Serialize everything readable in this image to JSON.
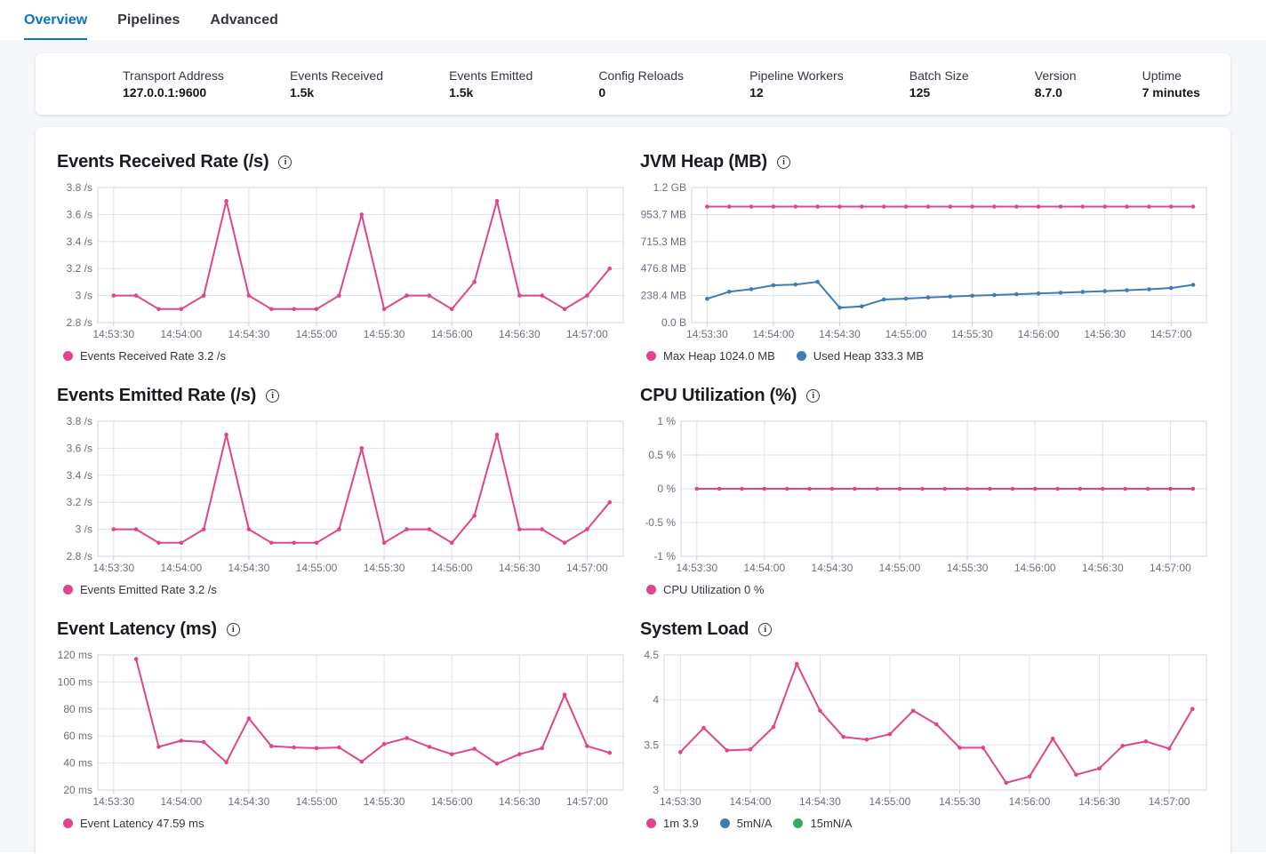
{
  "tabs": [
    {
      "label": "Overview",
      "active": true
    },
    {
      "label": "Pipelines",
      "active": false
    },
    {
      "label": "Advanced",
      "active": false
    }
  ],
  "stats": [
    {
      "label": "Transport Address",
      "value": "127.0.0.1:9600"
    },
    {
      "label": "Events Received",
      "value": "1.5k"
    },
    {
      "label": "Events Emitted",
      "value": "1.5k"
    },
    {
      "label": "Config Reloads",
      "value": "0"
    },
    {
      "label": "Pipeline Workers",
      "value": "12"
    },
    {
      "label": "Batch Size",
      "value": "125"
    },
    {
      "label": "Version",
      "value": "8.7.0"
    },
    {
      "label": "Uptime",
      "value": "7 minutes"
    }
  ],
  "icons": {
    "info": "i"
  },
  "colors": {
    "pink": "#e0458c",
    "blue": "#3f7cb6",
    "green": "#35ab62",
    "accent_blue": "#0b72c4"
  },
  "chart_data": [
    {
      "id": "events-received-rate",
      "type": "line",
      "title": "Events Received Rate (/s)",
      "xlabel": "",
      "ylabel": "",
      "x_tick_labels": [
        "14:53:30",
        "14:54:00",
        "14:54:30",
        "14:55:00",
        "14:55:30",
        "14:56:00",
        "14:56:30",
        "14:57:00"
      ],
      "x_tick_interval_sec": 30,
      "x_domain_sec": [
        -7,
        226
      ],
      "ylim": [
        2.8,
        3.8
      ],
      "y_ticks": [
        {
          "v": 2.8,
          "label": "2.8 /s"
        },
        {
          "v": 3.0,
          "label": "3 /s"
        },
        {
          "v": 3.2,
          "label": "3.2 /s"
        },
        {
          "v": 3.4,
          "label": "3.4 /s"
        },
        {
          "v": 3.6,
          "label": "3.6 /s"
        },
        {
          "v": 3.8,
          "label": "3.8 /s"
        }
      ],
      "series": [
        {
          "name": "Events Received Rate",
          "color": "#e0458c",
          "start_sec": 0,
          "interval_sec": 10,
          "values": [
            3,
            3,
            2.9,
            2.9,
            3,
            3.7,
            3,
            2.9,
            2.9,
            2.9,
            3,
            3.6,
            2.9,
            3,
            3,
            2.9,
            3.1,
            3.7,
            3,
            3,
            2.9,
            3,
            3.2
          ]
        }
      ],
      "legend": [
        {
          "label": "Events Received Rate 3.2 /s",
          "color": "#e0458c"
        }
      ]
    },
    {
      "id": "jvm-heap",
      "type": "line",
      "title": "JVM Heap (MB)",
      "xlabel": "",
      "ylabel": "",
      "x_tick_labels": [
        "14:53:30",
        "14:54:00",
        "14:54:30",
        "14:55:00",
        "14:55:30",
        "14:56:00",
        "14:56:30",
        "14:57:00"
      ],
      "x_tick_interval_sec": 30,
      "x_domain_sec": [
        -7,
        226
      ],
      "ylim": [
        0,
        1192.9
      ],
      "y_ticks": [
        {
          "v": 0,
          "label": "0.0 B"
        },
        {
          "v": 238.4,
          "label": "238.4 MB"
        },
        {
          "v": 476.8,
          "label": "476.8 MB"
        },
        {
          "v": 715.3,
          "label": "715.3 MB"
        },
        {
          "v": 953.7,
          "label": "953.7 MB"
        },
        {
          "v": 1192.9,
          "label": "1.2 GB"
        }
      ],
      "series": [
        {
          "name": "Max Heap",
          "color": "#e0458c",
          "start_sec": 0,
          "interval_sec": 10,
          "values": [
            1024,
            1024,
            1024,
            1024,
            1024,
            1024,
            1024,
            1024,
            1024,
            1024,
            1024,
            1024,
            1024,
            1024,
            1024,
            1024,
            1024,
            1024,
            1024,
            1024,
            1024,
            1024,
            1024
          ]
        },
        {
          "name": "Used Heap",
          "color": "#3f7cb6",
          "start_sec": 0,
          "interval_sec": 10,
          "values": [
            210,
            272,
            295,
            330,
            336,
            360,
            132,
            144,
            204,
            212,
            222,
            230,
            237,
            243,
            250,
            257,
            264,
            271,
            278,
            286,
            294,
            305,
            333.3
          ]
        }
      ],
      "legend": [
        {
          "label": "Max Heap 1024.0 MB",
          "color": "#e0458c"
        },
        {
          "label": "Used Heap 333.3 MB",
          "color": "#3f7cb6"
        }
      ]
    },
    {
      "id": "events-emitted-rate",
      "type": "line",
      "title": "Events Emitted Rate (/s)",
      "xlabel": "",
      "ylabel": "",
      "x_tick_labels": [
        "14:53:30",
        "14:54:00",
        "14:54:30",
        "14:55:00",
        "14:55:30",
        "14:56:00",
        "14:56:30",
        "14:57:00"
      ],
      "x_tick_interval_sec": 30,
      "x_domain_sec": [
        -7,
        226
      ],
      "ylim": [
        2.8,
        3.8
      ],
      "y_ticks": [
        {
          "v": 2.8,
          "label": "2.8 /s"
        },
        {
          "v": 3.0,
          "label": "3 /s"
        },
        {
          "v": 3.2,
          "label": "3.2 /s"
        },
        {
          "v": 3.4,
          "label": "3.4 /s"
        },
        {
          "v": 3.6,
          "label": "3.6 /s"
        },
        {
          "v": 3.8,
          "label": "3.8 /s"
        }
      ],
      "series": [
        {
          "name": "Events Emitted Rate",
          "color": "#e0458c",
          "start_sec": 0,
          "interval_sec": 10,
          "values": [
            3,
            3,
            2.9,
            2.9,
            3,
            3.7,
            3,
            2.9,
            2.9,
            2.9,
            3,
            3.6,
            2.9,
            3,
            3,
            2.9,
            3.1,
            3.7,
            3,
            3,
            2.9,
            3,
            3.2
          ]
        }
      ],
      "legend": [
        {
          "label": "Events Emitted Rate 3.2 /s",
          "color": "#e0458c"
        }
      ]
    },
    {
      "id": "cpu-utilization",
      "type": "line",
      "title": "CPU Utilization (%)",
      "xlabel": "",
      "ylabel": "",
      "x_tick_labels": [
        "14:53:30",
        "14:54:00",
        "14:54:30",
        "14:55:00",
        "14:55:30",
        "14:56:00",
        "14:56:30",
        "14:57:00"
      ],
      "x_tick_interval_sec": 30,
      "x_domain_sec": [
        -7,
        226
      ],
      "ylim": [
        -1,
        1
      ],
      "y_ticks": [
        {
          "v": -1,
          "label": "-1 %"
        },
        {
          "v": -0.5,
          "label": "-0.5 %"
        },
        {
          "v": 0,
          "label": "0 %"
        },
        {
          "v": 0.5,
          "label": "0.5 %"
        },
        {
          "v": 1,
          "label": "1 %"
        }
      ],
      "series": [
        {
          "name": "CPU Utilization",
          "color": "#e0458c",
          "start_sec": 0,
          "interval_sec": 10,
          "values": [
            0,
            0,
            0,
            0,
            0,
            0,
            0,
            0,
            0,
            0,
            0,
            0,
            0,
            0,
            0,
            0,
            0,
            0,
            0,
            0,
            0,
            0,
            0
          ]
        }
      ],
      "legend": [
        {
          "label": "CPU Utilization 0 %",
          "color": "#e0458c"
        }
      ]
    },
    {
      "id": "event-latency",
      "type": "line",
      "title": "Event Latency (ms)",
      "xlabel": "",
      "ylabel": "",
      "x_tick_labels": [
        "14:53:30",
        "14:54:00",
        "14:54:30",
        "14:55:00",
        "14:55:30",
        "14:56:00",
        "14:56:30",
        "14:57:00"
      ],
      "x_tick_interval_sec": 30,
      "x_domain_sec": [
        -7,
        226
      ],
      "ylim": [
        20,
        120
      ],
      "y_ticks": [
        {
          "v": 20,
          "label": "20 ms"
        },
        {
          "v": 40,
          "label": "40 ms"
        },
        {
          "v": 60,
          "label": "60 ms"
        },
        {
          "v": 80,
          "label": "80 ms"
        },
        {
          "v": 100,
          "label": "100 ms"
        },
        {
          "v": 120,
          "label": "120 ms"
        }
      ],
      "series": [
        {
          "name": "Event Latency",
          "color": "#e0458c",
          "start_sec": 10,
          "interval_sec": 10,
          "values": [
            117,
            52,
            56.5,
            55.5,
            40.5,
            73,
            52.5,
            51.5,
            51,
            51.5,
            41,
            54,
            58.5,
            52,
            46.5,
            50.5,
            39.5,
            46.5,
            51,
            90.5,
            52.5,
            47.59
          ]
        }
      ],
      "legend": [
        {
          "label": "Event Latency 47.59 ms",
          "color": "#e0458c"
        }
      ]
    },
    {
      "id": "system-load",
      "type": "line",
      "title": "System Load",
      "xlabel": "",
      "ylabel": "",
      "x_tick_labels": [
        "14:53:30",
        "14:54:00",
        "14:54:30",
        "14:55:00",
        "14:55:30",
        "14:56:00",
        "14:56:30",
        "14:57:00"
      ],
      "x_tick_interval_sec": 30,
      "x_domain_sec": [
        -7,
        226
      ],
      "ylim": [
        3,
        4.5
      ],
      "y_ticks": [
        {
          "v": 3,
          "label": "3"
        },
        {
          "v": 3.5,
          "label": "3.5"
        },
        {
          "v": 4,
          "label": "4"
        },
        {
          "v": 4.5,
          "label": "4.5"
        }
      ],
      "series": [
        {
          "name": "1m",
          "color": "#e0458c",
          "start_sec": 0,
          "interval_sec": 10,
          "values": [
            3.42,
            3.69,
            3.44,
            3.45,
            3.7,
            4.4,
            3.88,
            3.59,
            3.56,
            3.62,
            3.88,
            3.73,
            3.47,
            3.47,
            3.08,
            3.15,
            3.57,
            3.17,
            3.24,
            3.49,
            3.54,
            3.46,
            3.9
          ]
        }
      ],
      "legend": [
        {
          "label": "1m 3.9",
          "color": "#e0458c"
        },
        {
          "label": "5mN/A",
          "color": "#3f7cb6"
        },
        {
          "label": "15mN/A",
          "color": "#35ab62"
        }
      ]
    }
  ]
}
